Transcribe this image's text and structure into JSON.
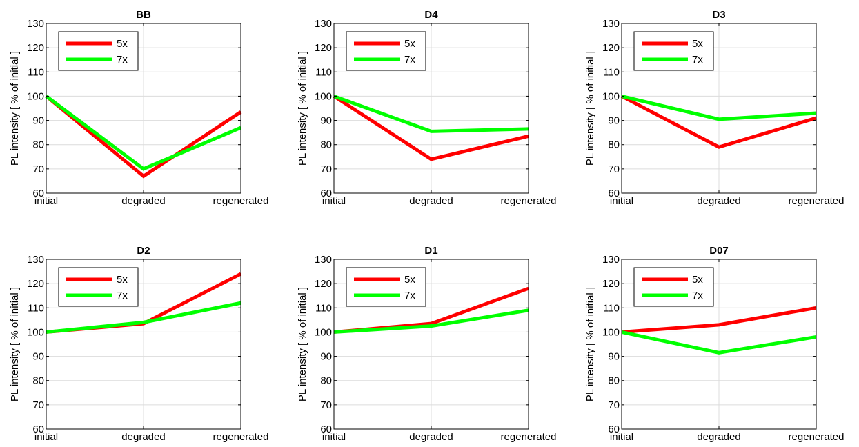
{
  "colors": {
    "5x": "#ff0000",
    "7x": "#00ff00"
  },
  "chart_data": [
    {
      "type": "line",
      "title": "BB",
      "categories": [
        "initial",
        "degraded",
        "regenerated"
      ],
      "ylabel": "PL intensity [ % of initial ]",
      "ylim": [
        60,
        130
      ],
      "yticks": [
        60,
        70,
        80,
        90,
        100,
        110,
        120,
        130
      ],
      "grid": true,
      "legend": "top-left",
      "series": [
        {
          "name": "5x",
          "values": [
            100,
            67,
            93.5
          ]
        },
        {
          "name": "7x",
          "values": [
            100,
            70,
            87
          ]
        }
      ]
    },
    {
      "type": "line",
      "title": "D4",
      "categories": [
        "initial",
        "degraded",
        "regenerated"
      ],
      "ylabel": "PL intensity [ % of initial ]",
      "ylim": [
        60,
        130
      ],
      "yticks": [
        60,
        70,
        80,
        90,
        100,
        110,
        120,
        130
      ],
      "grid": true,
      "legend": "top-left",
      "series": [
        {
          "name": "5x",
          "values": [
            100,
            74,
            83.5
          ]
        },
        {
          "name": "7x",
          "values": [
            100,
            85.5,
            86.5
          ]
        }
      ]
    },
    {
      "type": "line",
      "title": "D3",
      "categories": [
        "initial",
        "degraded",
        "regenerated"
      ],
      "ylabel": "PL intensity [ % of initial ]",
      "ylim": [
        60,
        130
      ],
      "yticks": [
        60,
        70,
        80,
        90,
        100,
        110,
        120,
        130
      ],
      "grid": true,
      "legend": "top-left",
      "series": [
        {
          "name": "5x",
          "values": [
            100,
            79,
            91
          ]
        },
        {
          "name": "7x",
          "values": [
            100,
            90.5,
            93
          ]
        }
      ]
    },
    {
      "type": "line",
      "title": "D2",
      "categories": [
        "initial",
        "degraded",
        "regenerated"
      ],
      "ylabel": "PL intensity [ % of initial ]",
      "ylim": [
        60,
        130
      ],
      "yticks": [
        60,
        70,
        80,
        90,
        100,
        110,
        120,
        130
      ],
      "grid": true,
      "legend": "top-left",
      "series": [
        {
          "name": "5x",
          "values": [
            100,
            103.5,
            124
          ]
        },
        {
          "name": "7x",
          "values": [
            100,
            104,
            112
          ]
        }
      ]
    },
    {
      "type": "line",
      "title": "D1",
      "categories": [
        "initial",
        "degraded",
        "regenerated"
      ],
      "ylabel": "PL intensity [ % of initial ]",
      "ylim": [
        60,
        130
      ],
      "yticks": [
        60,
        70,
        80,
        90,
        100,
        110,
        120,
        130
      ],
      "grid": true,
      "legend": "top-left",
      "series": [
        {
          "name": "5x",
          "values": [
            100,
            103.5,
            118
          ]
        },
        {
          "name": "7x",
          "values": [
            100,
            102.5,
            109
          ]
        }
      ]
    },
    {
      "type": "line",
      "title": "D07",
      "categories": [
        "initial",
        "degraded",
        "regenerated"
      ],
      "ylabel": "PL intensity [ % of initial ]",
      "ylim": [
        60,
        130
      ],
      "yticks": [
        60,
        70,
        80,
        90,
        100,
        110,
        120,
        130
      ],
      "grid": true,
      "legend": "top-left",
      "series": [
        {
          "name": "5x",
          "values": [
            100,
            103,
            110
          ]
        },
        {
          "name": "7x",
          "values": [
            100,
            91.5,
            98
          ]
        }
      ]
    }
  ]
}
